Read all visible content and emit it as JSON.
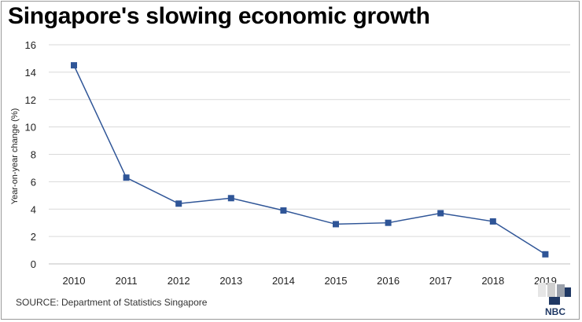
{
  "title": "Singapore's slowing economic growth",
  "source": "SOURCE: Department of Statistics Singapore",
  "logo_text": "NBC",
  "colors": {
    "series": "#2f5597",
    "grid": "#d9d9d9",
    "axis": "#bfbfbf"
  },
  "chart_data": {
    "type": "line",
    "title": "Singapore's slowing economic growth",
    "xlabel": "",
    "ylabel": "Year-on-year change (%)",
    "categories": [
      "2010",
      "2011",
      "2012",
      "2013",
      "2014",
      "2015",
      "2016",
      "2017",
      "2018",
      "2019"
    ],
    "series": [
      {
        "values": [
          14.5,
          6.3,
          4.4,
          4.8,
          3.9,
          2.9,
          3.0,
          3.7,
          3.1,
          0.7
        ]
      }
    ],
    "ylim": [
      0,
      16
    ],
    "yticks": [
      "0",
      "2",
      "4",
      "6",
      "8",
      "10",
      "12",
      "14",
      "16"
    ],
    "grid": true,
    "legend": "none",
    "marker": "square"
  }
}
